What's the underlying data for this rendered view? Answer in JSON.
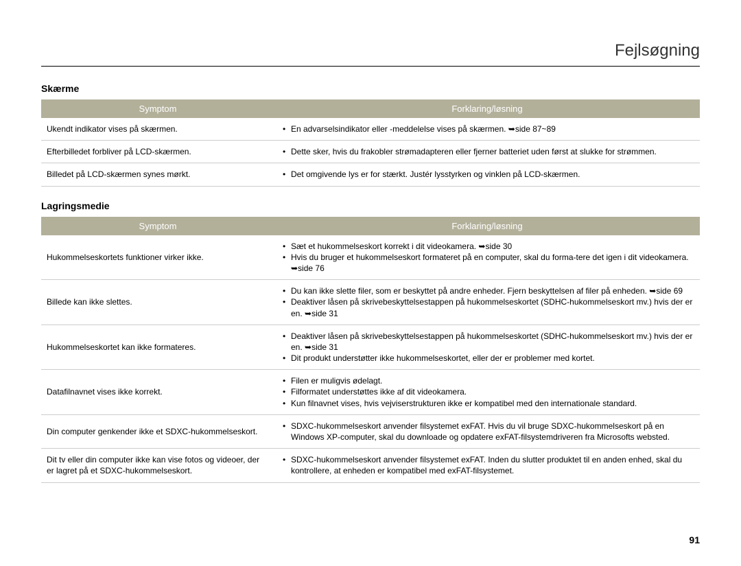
{
  "header": {
    "title": "Fejlsøgning"
  },
  "sections": [
    {
      "heading": "Skærme",
      "columns": {
        "left": "Symptom",
        "right": "Forklaring/løsning"
      },
      "rows": [
        {
          "symptom": "Ukendt indikator vises på skærmen.",
          "items": [
            "En advarselsindikator eller -meddelelse vises på skærmen. ➥side 87~89"
          ]
        },
        {
          "symptom": "Efterbilledet forbliver på LCD-skærmen.",
          "items": [
            "Dette sker, hvis du frakobler strømadapteren eller fjerner batteriet uden først at slukke for strømmen."
          ]
        },
        {
          "symptom": "Billedet på LCD-skærmen synes mørkt.",
          "items": [
            "Det omgivende lys er for stærkt. Justér lysstyrken og vinklen på LCD-skærmen."
          ]
        }
      ]
    },
    {
      "heading": "Lagringsmedie",
      "columns": {
        "left": "Symptom",
        "right": "Forklaring/løsning"
      },
      "rows": [
        {
          "symptom": "Hukommelseskortets funktioner virker ikke.",
          "items": [
            "Sæt et hukommelseskort korrekt i dit videokamera. ➥side 30",
            "Hvis du bruger et hukommelseskort formateret på en computer, skal du forma-tere det igen i dit videokamera. ➥side 76"
          ]
        },
        {
          "symptom": "Billede kan ikke slettes.",
          "items": [
            "Du kan ikke slette filer, som er beskyttet på andre enheder. Fjern beskyttelsen af filer på enheden. ➥side 69",
            "Deaktiver låsen på skrivebeskyttelsestappen på hukommelseskortet (SDHC-hukommelseskort mv.) hvis der er en. ➥side 31"
          ]
        },
        {
          "symptom": "Hukommelseskortet kan ikke formateres.",
          "items": [
            "Deaktiver låsen på skrivebeskyttelsestappen på hukommelseskortet (SDHC-hukommelseskort mv.) hvis der er en. ➥side 31",
            "Dit produkt understøtter ikke hukommelseskortet, eller der er problemer med kortet."
          ]
        },
        {
          "symptom": "Datafilnavnet vises ikke korrekt.",
          "items": [
            "Filen er muligvis ødelagt.",
            "Filformatet understøttes ikke af dit videokamera.",
            "Kun filnavnet vises, hvis vejviserstrukturen ikke er kompatibel med den internationale standard."
          ]
        },
        {
          "symptom": "Din computer genkender ikke et SDXC-hukommelseskort.",
          "items": [
            "SDXC-hukommelseskort anvender filsystemet exFAT. Hvis du vil bruge SDXC-hukommelseskort på en Windows XP-computer, skal du downloade og opdatere exFAT-filsystemdriveren fra Microsofts websted."
          ]
        },
        {
          "symptom": "Dit tv eller din computer ikke kan vise fotos og videoer, der er lagret på et SDXC-hukommelseskort.",
          "items": [
            "SDXC-hukommelseskort anvender filsystemet exFAT. Inden du slutter produktet til en anden enhed, skal du kontrollere, at enheden er kompatibel med exFAT-filsystemet."
          ]
        }
      ]
    }
  ],
  "page_number": "91",
  "style": {
    "header_bg": "#b3b09a",
    "header_text": "#ffffff",
    "body_text": "#000000",
    "border_color": "#cccccc",
    "title_rule": "#000000",
    "page_bg": "#ffffff",
    "title_fontsize": 24,
    "body_fontsize": 12,
    "heading_fontsize": 14
  }
}
